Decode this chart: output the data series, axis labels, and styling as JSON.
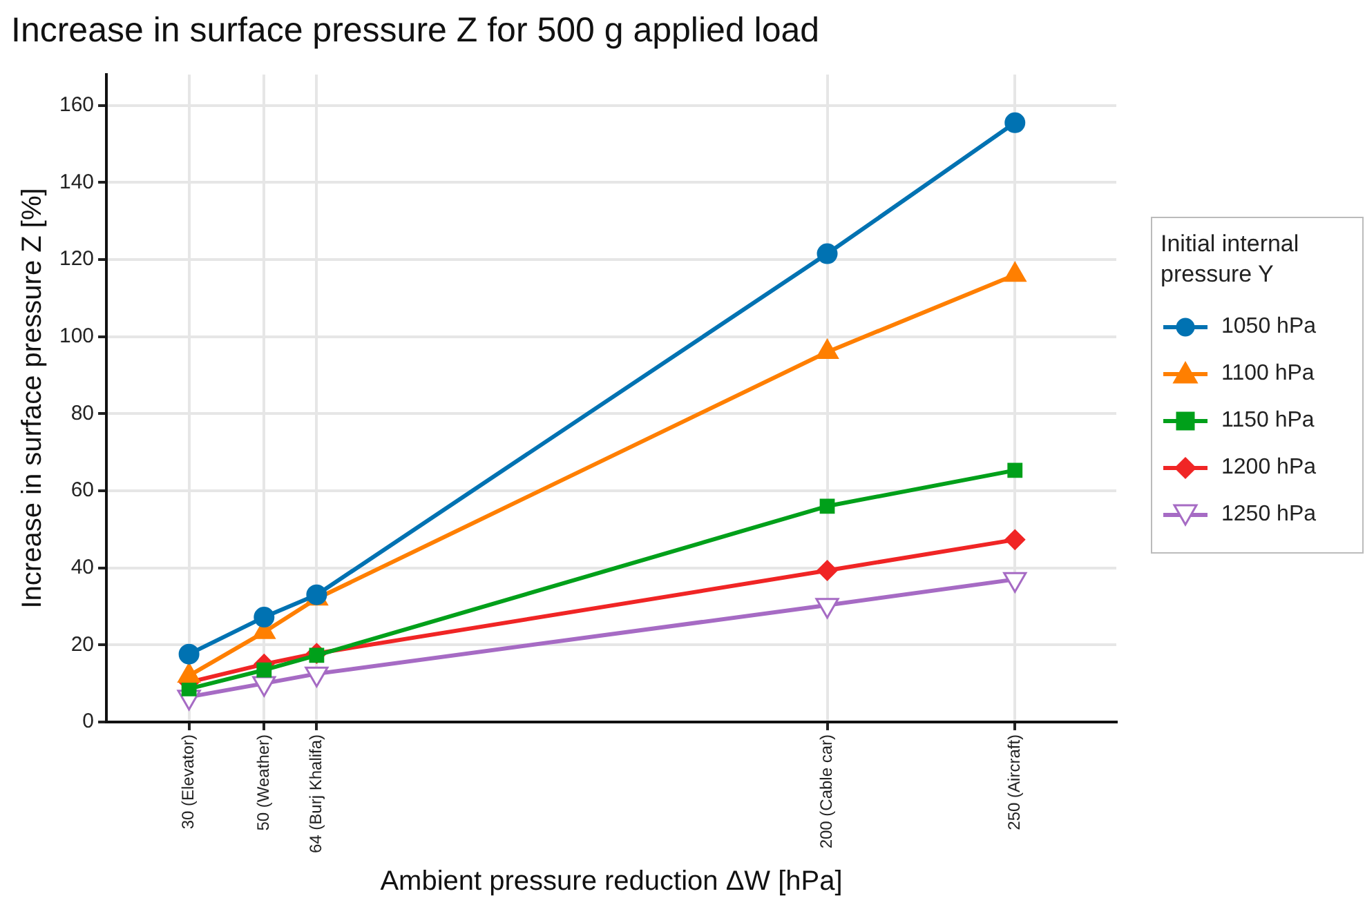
{
  "chart_data": {
    "type": "line",
    "title": "Increase in surface pressure Z for 500 g applied load",
    "xlabel": "Ambient pressure reduction ΔW [hPa]",
    "ylabel": "Increase in surface pressure Z [%]",
    "legend_title": "Initial internal pressure Y",
    "x": [
      30,
      50,
      64,
      200,
      250
    ],
    "series": [
      {
        "name": "1050 hPa",
        "color": "#0072b2",
        "marker": "circle",
        "values": [
          17.6,
          27.2,
          33,
          121.5,
          155.5
        ]
      },
      {
        "name": "1100 hPa",
        "color": "#ff7f00",
        "marker": "triangle",
        "values": [
          12,
          23.3,
          32,
          96,
          116
        ]
      },
      {
        "name": "1150 hPa",
        "color": "#00a01a",
        "marker": "square",
        "values": [
          8.6,
          13.5,
          17.3,
          56,
          65.3
        ]
      },
      {
        "name": "1200 hPa",
        "color": "#f02525",
        "marker": "diamond",
        "values": [
          10.3,
          15,
          17.8,
          39.3,
          47.3
        ]
      },
      {
        "name": "1250 hPa",
        "color": "#a66bc4",
        "marker": "triangle-down",
        "values": [
          6.5,
          10,
          12.5,
          30.3,
          37
        ]
      }
    ],
    "xlim": [
      8,
      277
    ],
    "xticks": [
      {
        "value": 30,
        "label": "30 (Elevator)"
      },
      {
        "value": 50,
        "label": "50 (Weather)"
      },
      {
        "value": 64,
        "label": "64 (Burj Khalifa)"
      },
      {
        "value": 200,
        "label": "200 (Cable car)"
      },
      {
        "value": 250,
        "label": "250 (Aircraft)"
      }
    ],
    "ylim": [
      0,
      168
    ],
    "yticks": [
      0,
      20,
      40,
      60,
      80,
      100,
      120,
      140,
      160
    ],
    "grid": true,
    "legend": "right",
    "line_style": "solid"
  }
}
